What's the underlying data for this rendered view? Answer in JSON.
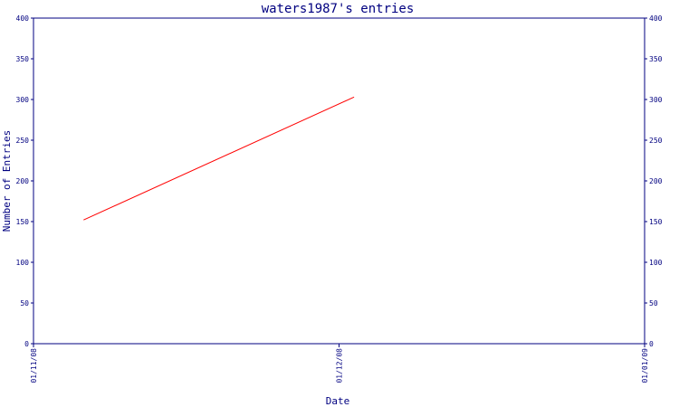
{
  "chart_data": {
    "type": "line",
    "title": "waters1987's entries",
    "xlabel": "Date",
    "ylabel": "Number of Entries",
    "x_ticks": [
      "01/11/08",
      "01/12/08",
      "01/01/09"
    ],
    "ylim": [
      0,
      400
    ],
    "y_ticks": [
      0,
      50,
      100,
      150,
      200,
      250,
      300,
      350,
      400
    ],
    "y_ticks_right": [
      0,
      50,
      100,
      150,
      200,
      250,
      300,
      350,
      400
    ],
    "grid": false,
    "colors": {
      "axis": "#000080",
      "series": "#ff0000"
    },
    "series": [
      {
        "x": [
          "2008-11-06",
          "2008-12-03"
        ],
        "values": [
          152,
          303
        ]
      }
    ]
  }
}
